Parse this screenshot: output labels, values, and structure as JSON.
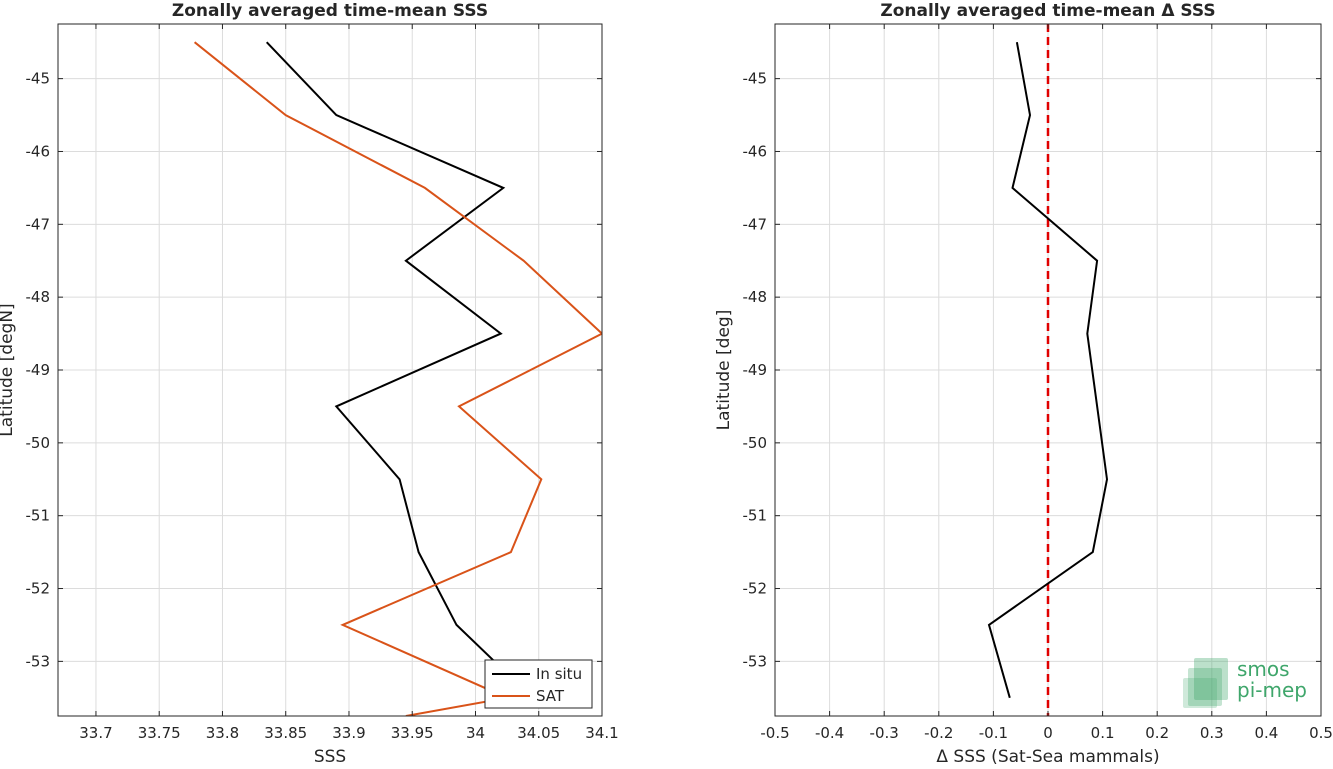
{
  "chart_data": [
    {
      "type": "line",
      "title": "Zonally averaged time-mean SSS",
      "xlabel": "SSS",
      "ylabel": "Latitude [degN]",
      "xlim": [
        33.67,
        34.1
      ],
      "ylim": [
        -53.75,
        -44.25
      ],
      "xticks": [
        33.7,
        33.75,
        33.8,
        33.85,
        33.9,
        33.95,
        34.0,
        34.05,
        34.1
      ],
      "xtick_labels": [
        "33.7",
        "33.75",
        "33.8",
        "33.85",
        "33.9",
        "33.95",
        "34",
        "34.05",
        "34.1"
      ],
      "yticks": [
        -45,
        -46,
        -47,
        -48,
        -49,
        -50,
        -51,
        -52,
        -53
      ],
      "ytick_labels": [
        "-45",
        "-46",
        "-47",
        "-48",
        "-49",
        "-50",
        "-51",
        "-52",
        "-53"
      ],
      "grid": true,
      "legend": {
        "placement": "bottom-right"
      },
      "series": [
        {
          "name": "In situ",
          "color": "#000000",
          "x": [
            33.835,
            33.89,
            34.022,
            33.945,
            34.02,
            33.89,
            33.94,
            33.955,
            33.985,
            34.015,
            34.025,
            34.03
          ],
          "y": [
            -44.5,
            -45.5,
            -46.5,
            -47.5,
            -48.5,
            -49.5,
            -50.5,
            -51.5,
            -52.5,
            -53.0,
            -53.2,
            -53.5
          ]
        },
        {
          "name": "SAT",
          "color": "#D95319",
          "x": [
            33.778,
            33.85,
            33.96,
            34.038,
            34.1,
            33.987,
            34.052,
            34.028,
            33.895,
            34.025,
            33.945
          ],
          "y": [
            -44.5,
            -45.5,
            -46.5,
            -47.5,
            -48.5,
            -49.5,
            -50.5,
            -51.5,
            -52.5,
            -53.5,
            -53.75
          ]
        }
      ]
    },
    {
      "type": "line",
      "title": "Zonally averaged time-mean Δ SSS",
      "xlabel": "Δ SSS (Sat-Sea mammals)",
      "ylabel": "Latitude [deg]",
      "xlim": [
        -0.5,
        0.5
      ],
      "ylim": [
        -53.75,
        -44.25
      ],
      "xticks": [
        -0.5,
        -0.4,
        -0.3,
        -0.2,
        -0.1,
        0,
        0.1,
        0.2,
        0.3,
        0.4,
        0.5
      ],
      "xtick_labels": [
        "-0.5",
        "-0.4",
        "-0.3",
        "-0.2",
        "-0.1",
        "0",
        "0.1",
        "0.2",
        "0.3",
        "0.4",
        "0.5"
      ],
      "yticks": [
        -45,
        -46,
        -47,
        -48,
        -49,
        -50,
        -51,
        -52,
        -53
      ],
      "ytick_labels": [
        "-45",
        "-46",
        "-47",
        "-48",
        "-49",
        "-50",
        "-51",
        "-52",
        "-53"
      ],
      "grid": true,
      "reference_line": {
        "x": 0,
        "color": "#E00000",
        "style": "dashed"
      },
      "series": [
        {
          "color": "#000000",
          "x": [
            -0.057,
            -0.033,
            -0.065,
            0.09,
            0.072,
            0.108,
            0.082,
            -0.108,
            -0.07
          ],
          "y": [
            -44.5,
            -45.5,
            -46.5,
            -47.5,
            -48.5,
            -50.5,
            -51.5,
            -52.5,
            -53.5
          ]
        }
      ]
    }
  ],
  "logo": {
    "line1": "smos",
    "line2": "pi-mep",
    "color": "#3FA66B"
  }
}
